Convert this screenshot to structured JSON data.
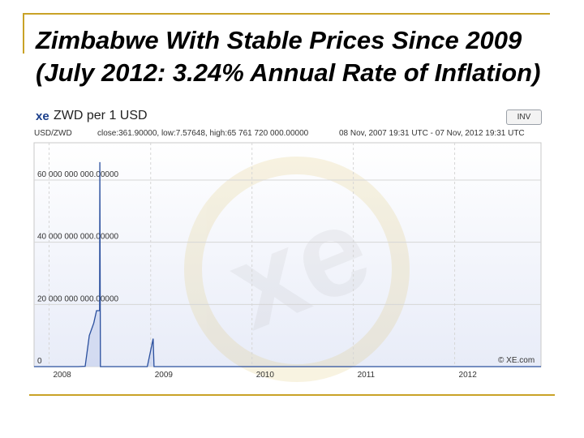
{
  "slide": {
    "title": "Zimbabwe With Stable Prices Since 2009 (July 2012: 3.24% Annual Rate of Inflation)"
  },
  "widget": {
    "logo": "xe",
    "title": "ZWD per 1 USD",
    "invert_label": "INV",
    "pair": "USD/ZWD",
    "stats": "close:361.90000, low:7.57648, high:65 761 720 000.00000",
    "range": "08 Nov, 2007 19:31 UTC - 07 Nov, 2012 19:31 UTC",
    "watermark": "© XE.com"
  },
  "chart_data": {
    "type": "line",
    "title": "ZWD per 1 USD",
    "x_range": [
      "2007-11-08",
      "2012-11-07"
    ],
    "x_ticks": [
      "2008",
      "2009",
      "2010",
      "2011",
      "2012"
    ],
    "ylim": [
      0,
      72000000000
    ],
    "y_ticks": [
      {
        "value": 0,
        "label": "0"
      },
      {
        "value": 20000000000,
        "label": "20 000 000 000.00000"
      },
      {
        "value": 40000000000,
        "label": "40 000 000 000.00000"
      },
      {
        "value": 60000000000,
        "label": "60 000 000 000.00000"
      }
    ],
    "grid": true,
    "colors": {
      "line": "#2a4f9e",
      "fill": "#c9d3ee",
      "grid": "#d6d6d6"
    },
    "series": [
      {
        "values": [
          [
            "2007-11-08",
            0
          ],
          [
            "2008-04-15",
            0
          ],
          [
            "2008-05-10",
            100000000
          ],
          [
            "2008-05-25",
            10000000000
          ],
          [
            "2008-06-10",
            14000000000
          ],
          [
            "2008-06-20",
            18000000000
          ],
          [
            "2008-07-01",
            18000000000
          ],
          [
            "2008-07-02",
            65761720000
          ],
          [
            "2008-07-04",
            0
          ],
          [
            "2008-12-20",
            0
          ],
          [
            "2009-01-10",
            9000000000
          ],
          [
            "2009-01-13",
            0
          ],
          [
            "2012-11-07",
            0
          ]
        ]
      }
    ]
  }
}
